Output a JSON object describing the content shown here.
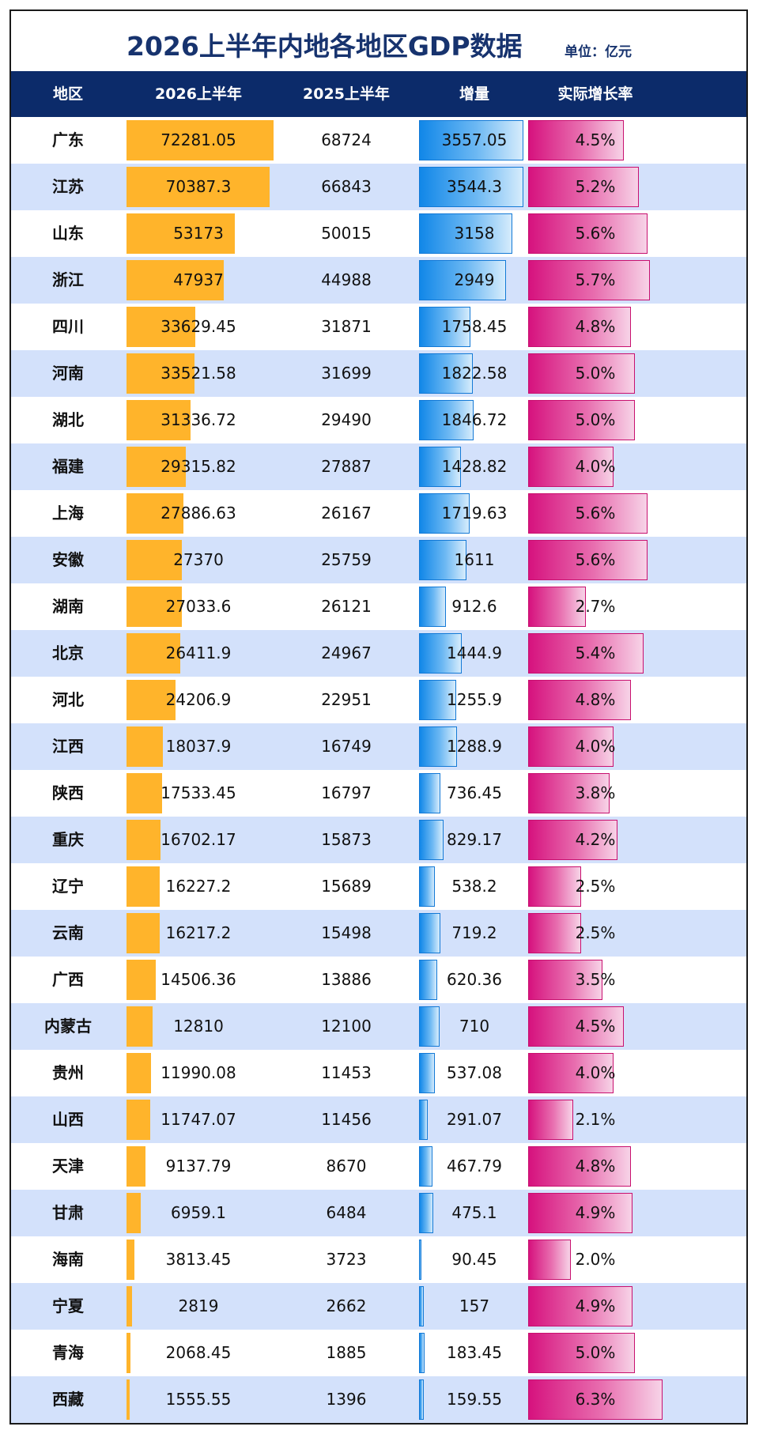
{
  "title": "2026上半年内地各地区GDP数据",
  "unit": "单位：亿元",
  "columns": [
    "地区",
    "2026上半年",
    "2025上半年",
    "增量",
    "实际增长率"
  ],
  "chart_data": {
    "type": "table",
    "title": "2026上半年内地各地区GDP数据",
    "unit": "单位：亿元",
    "columns": [
      "地区",
      "2026上半年",
      "2025上半年",
      "增量",
      "实际增长率"
    ],
    "rows": [
      {
        "region": "广东",
        "h1_2026": "72281.05",
        "h1_2025": "68724",
        "increase": "3557.05",
        "growth": "4.5%"
      },
      {
        "region": "江苏",
        "h1_2026": "70387.3",
        "h1_2025": "66843",
        "increase": "3544.3",
        "growth": "5.2%"
      },
      {
        "region": "山东",
        "h1_2026": "53173",
        "h1_2025": "50015",
        "increase": "3158",
        "growth": "5.6%"
      },
      {
        "region": "浙江",
        "h1_2026": "47937",
        "h1_2025": "44988",
        "increase": "2949",
        "growth": "5.7%"
      },
      {
        "region": "四川",
        "h1_2026": "33629.45",
        "h1_2025": "31871",
        "increase": "1758.45",
        "growth": "4.8%"
      },
      {
        "region": "河南",
        "h1_2026": "33521.58",
        "h1_2025": "31699",
        "increase": "1822.58",
        "growth": "5.0%"
      },
      {
        "region": "湖北",
        "h1_2026": "31336.72",
        "h1_2025": "29490",
        "increase": "1846.72",
        "growth": "5.0%"
      },
      {
        "region": "福建",
        "h1_2026": "29315.82",
        "h1_2025": "27887",
        "increase": "1428.82",
        "growth": "4.0%"
      },
      {
        "region": "上海",
        "h1_2026": "27886.63",
        "h1_2025": "26167",
        "increase": "1719.63",
        "growth": "5.6%"
      },
      {
        "region": "安徽",
        "h1_2026": "27370",
        "h1_2025": "25759",
        "increase": "1611",
        "growth": "5.6%"
      },
      {
        "region": "湖南",
        "h1_2026": "27033.6",
        "h1_2025": "26121",
        "increase": "912.6",
        "growth": "2.7%"
      },
      {
        "region": "北京",
        "h1_2026": "26411.9",
        "h1_2025": "24967",
        "increase": "1444.9",
        "growth": "5.4%"
      },
      {
        "region": "河北",
        "h1_2026": "24206.9",
        "h1_2025": "22951",
        "increase": "1255.9",
        "growth": "4.8%"
      },
      {
        "region": "江西",
        "h1_2026": "18037.9",
        "h1_2025": "16749",
        "increase": "1288.9",
        "growth": "4.0%"
      },
      {
        "region": "陕西",
        "h1_2026": "17533.45",
        "h1_2025": "16797",
        "increase": "736.45",
        "growth": "3.8%"
      },
      {
        "region": "重庆",
        "h1_2026": "16702.17",
        "h1_2025": "15873",
        "increase": "829.17",
        "growth": "4.2%"
      },
      {
        "region": "辽宁",
        "h1_2026": "16227.2",
        "h1_2025": "15689",
        "increase": "538.2",
        "growth": "2.5%"
      },
      {
        "region": "云南",
        "h1_2026": "16217.2",
        "h1_2025": "15498",
        "increase": "719.2",
        "growth": "2.5%"
      },
      {
        "region": "广西",
        "h1_2026": "14506.36",
        "h1_2025": "13886",
        "increase": "620.36",
        "growth": "3.5%"
      },
      {
        "region": "内蒙古",
        "h1_2026": "12810",
        "h1_2025": "12100",
        "increase": "710",
        "growth": "4.5%"
      },
      {
        "region": "贵州",
        "h1_2026": "11990.08",
        "h1_2025": "11453",
        "increase": "537.08",
        "growth": "4.0%"
      },
      {
        "region": "山西",
        "h1_2026": "11747.07",
        "h1_2025": "11456",
        "increase": "291.07",
        "growth": "2.1%"
      },
      {
        "region": "天津",
        "h1_2026": "9137.79",
        "h1_2025": "8670",
        "increase": "467.79",
        "growth": "4.8%"
      },
      {
        "region": "甘肃",
        "h1_2026": "6959.1",
        "h1_2025": "6484",
        "increase": "475.1",
        "growth": "4.9%"
      },
      {
        "region": "海南",
        "h1_2026": "3813.45",
        "h1_2025": "3723",
        "increase": "90.45",
        "growth": "2.0%"
      },
      {
        "region": "宁夏",
        "h1_2026": "2819",
        "h1_2025": "2662",
        "increase": "157",
        "growth": "4.9%"
      },
      {
        "region": "青海",
        "h1_2026": "2068.45",
        "h1_2025": "1885",
        "increase": "183.45",
        "growth": "5.0%"
      },
      {
        "region": "西藏",
        "h1_2026": "1555.55",
        "h1_2025": "1396",
        "increase": "159.55",
        "growth": "6.3%"
      }
    ]
  },
  "colors": {
    "header_bg": "#0c2b6a",
    "title": "#17336e",
    "alt_row": "#d3e1fb",
    "bar_2026": "#ffb42b",
    "bar_increase": "#1187e8",
    "bar_growth": "#d6127e"
  }
}
